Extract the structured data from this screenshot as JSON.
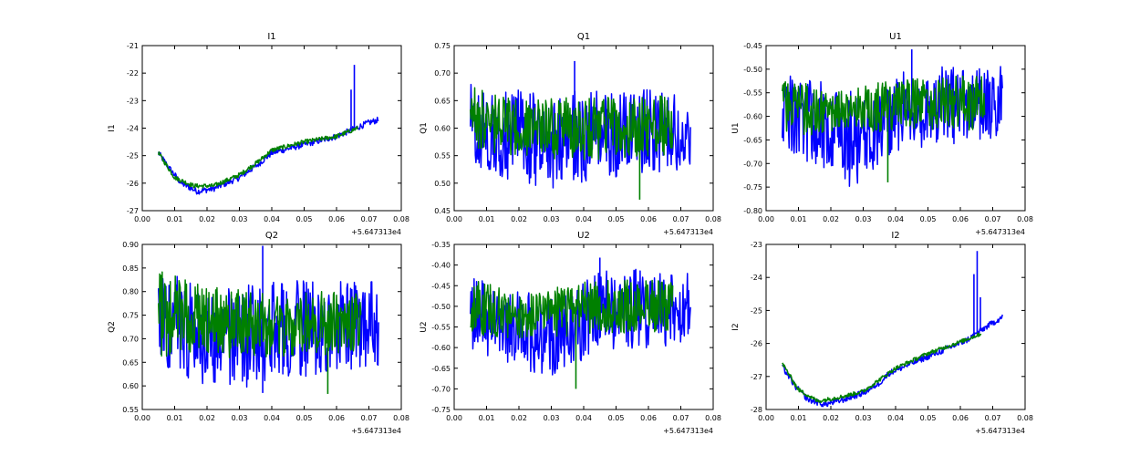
{
  "figure": {
    "background": "#ffffff",
    "series_colors": [
      "#0000ff",
      "#008000"
    ],
    "x_offset_label": "+5.647313e4"
  },
  "chart_data": [
    {
      "type": "line",
      "title": "I1",
      "xlabel": "",
      "ylabel": "I1",
      "xlim": [
        0.0,
        0.08
      ],
      "ylim": [
        -27,
        -21
      ],
      "x_ticks": [
        "0.00",
        "0.01",
        "0.02",
        "0.03",
        "0.04",
        "0.05",
        "0.06",
        "0.07",
        "0.08"
      ],
      "y_ticks": [
        "-27",
        "-26",
        "-25",
        "-24",
        "-23",
        "-22",
        "-21"
      ],
      "x_offset_label": "+5.647313e4",
      "grid": false,
      "series": [
        {
          "color": "#0000ff",
          "style": "smooth",
          "x_range": [
            0.005,
            0.073
          ],
          "knots": [
            [
              0.005,
              -24.9
            ],
            [
              0.008,
              -25.4
            ],
            [
              0.012,
              -26.0
            ],
            [
              0.017,
              -26.3
            ],
            [
              0.022,
              -26.2
            ],
            [
              0.03,
              -25.8
            ],
            [
              0.036,
              -25.3
            ],
            [
              0.04,
              -24.9
            ],
            [
              0.05,
              -24.6
            ],
            [
              0.06,
              -24.3
            ],
            [
              0.066,
              -24.0
            ],
            [
              0.07,
              -23.8
            ],
            [
              0.073,
              -23.7
            ]
          ],
          "noise": 0.22,
          "spikes": [
            [
              0.0645,
              -22.6
            ],
            [
              0.0655,
              -21.7
            ]
          ]
        },
        {
          "color": "#008000",
          "style": "smooth",
          "x_range": [
            0.005,
            0.0665
          ],
          "knots": [
            [
              0.005,
              -24.9
            ],
            [
              0.01,
              -25.8
            ],
            [
              0.016,
              -26.1
            ],
            [
              0.022,
              -26.1
            ],
            [
              0.03,
              -25.7
            ],
            [
              0.036,
              -25.2
            ],
            [
              0.04,
              -24.8
            ],
            [
              0.05,
              -24.5
            ],
            [
              0.06,
              -24.3
            ],
            [
              0.0665,
              -24.0
            ]
          ],
          "noise": 0.16,
          "spikes": []
        }
      ]
    },
    {
      "type": "line",
      "title": "Q1",
      "xlabel": "",
      "ylabel": "Q1",
      "xlim": [
        0.0,
        0.08
      ],
      "ylim": [
        0.45,
        0.75
      ],
      "x_ticks": [
        "0.00",
        "0.01",
        "0.02",
        "0.03",
        "0.04",
        "0.05",
        "0.06",
        "0.07",
        "0.08"
      ],
      "y_ticks": [
        "0.45",
        "0.50",
        "0.55",
        "0.60",
        "0.65",
        "0.70",
        "0.75"
      ],
      "x_offset_label": "+5.647313e4",
      "grid": false,
      "series": [
        {
          "color": "#0000ff",
          "style": "band",
          "x_range": [
            0.005,
            0.073
          ],
          "band": [
            [
              0.005,
              0.53,
              0.68
            ],
            [
              0.02,
              0.5,
              0.67
            ],
            [
              0.03,
              0.49,
              0.66
            ],
            [
              0.04,
              0.5,
              0.67
            ],
            [
              0.05,
              0.51,
              0.67
            ],
            [
              0.06,
              0.52,
              0.67
            ],
            [
              0.073,
              0.52,
              0.66
            ]
          ],
          "spikes": [
            [
              0.0372,
              0.722
            ],
            [
              0.0372,
              0.515
            ]
          ]
        },
        {
          "color": "#008000",
          "style": "band",
          "x_range": [
            0.005,
            0.0675
          ],
          "band": [
            [
              0.005,
              0.56,
              0.68
            ],
            [
              0.02,
              0.55,
              0.65
            ],
            [
              0.04,
              0.54,
              0.66
            ],
            [
              0.067,
              0.55,
              0.66
            ]
          ],
          "spikes": [
            [
              0.0573,
              0.47
            ]
          ]
        }
      ]
    },
    {
      "type": "line",
      "title": "U1",
      "xlabel": "",
      "ylabel": "U1",
      "xlim": [
        0.0,
        0.08
      ],
      "ylim": [
        -0.8,
        -0.45
      ],
      "x_ticks": [
        "0.00",
        "0.01",
        "0.02",
        "0.03",
        "0.04",
        "0.05",
        "0.06",
        "0.07",
        "0.08"
      ],
      "y_ticks": [
        "-0.80",
        "-0.75",
        "-0.70",
        "-0.65",
        "-0.60",
        "-0.55",
        "-0.50",
        "-0.45"
      ],
      "x_offset_label": "+5.647313e4",
      "grid": false,
      "series": [
        {
          "color": "#0000ff",
          "style": "band",
          "x_range": [
            0.005,
            0.073
          ],
          "band": [
            [
              0.005,
              -0.68,
              -0.51
            ],
            [
              0.015,
              -0.7,
              -0.52
            ],
            [
              0.025,
              -0.75,
              -0.54
            ],
            [
              0.03,
              -0.74,
              -0.56
            ],
            [
              0.035,
              -0.7,
              -0.53
            ],
            [
              0.045,
              -0.67,
              -0.49
            ],
            [
              0.06,
              -0.66,
              -0.48
            ],
            [
              0.073,
              -0.65,
              -0.49
            ]
          ],
          "spikes": [
            [
              0.045,
              -0.458
            ]
          ]
        },
        {
          "color": "#008000",
          "style": "band",
          "x_range": [
            0.005,
            0.0675
          ],
          "band": [
            [
              0.005,
              -0.64,
              -0.51
            ],
            [
              0.02,
              -0.64,
              -0.55
            ],
            [
              0.04,
              -0.63,
              -0.52
            ],
            [
              0.067,
              -0.63,
              -0.51
            ]
          ],
          "spikes": [
            [
              0.0376,
              -0.74
            ]
          ]
        }
      ]
    },
    {
      "type": "line",
      "title": "Q2",
      "xlabel": "",
      "ylabel": "Q2",
      "xlim": [
        0.0,
        0.08
      ],
      "ylim": [
        0.55,
        0.9
      ],
      "x_ticks": [
        "0.00",
        "0.01",
        "0.02",
        "0.03",
        "0.04",
        "0.05",
        "0.06",
        "0.07",
        "0.08"
      ],
      "y_ticks": [
        "0.55",
        "0.60",
        "0.65",
        "0.70",
        "0.75",
        "0.80",
        "0.85",
        "0.90"
      ],
      "x_offset_label": "+5.647313e4",
      "grid": false,
      "series": [
        {
          "color": "#0000ff",
          "style": "band",
          "x_range": [
            0.005,
            0.073
          ],
          "band": [
            [
              0.005,
              0.64,
              0.84
            ],
            [
              0.02,
              0.6,
              0.82
            ],
            [
              0.03,
              0.59,
              0.81
            ],
            [
              0.04,
              0.61,
              0.83
            ],
            [
              0.05,
              0.62,
              0.83
            ],
            [
              0.06,
              0.63,
              0.83
            ],
            [
              0.073,
              0.64,
              0.82
            ]
          ],
          "spikes": [
            [
              0.0372,
              0.897
            ],
            [
              0.0372,
              0.585
            ]
          ]
        },
        {
          "color": "#008000",
          "style": "band",
          "x_range": [
            0.005,
            0.0675
          ],
          "band": [
            [
              0.005,
              0.66,
              0.85
            ],
            [
              0.02,
              0.66,
              0.81
            ],
            [
              0.04,
              0.66,
              0.8
            ],
            [
              0.067,
              0.67,
              0.8
            ]
          ],
          "spikes": [
            [
              0.0573,
              0.583
            ]
          ]
        }
      ]
    },
    {
      "type": "line",
      "title": "U2",
      "xlabel": "",
      "ylabel": "U2",
      "xlim": [
        0.0,
        0.08
      ],
      "ylim": [
        -0.75,
        -0.35
      ],
      "x_ticks": [
        "0.00",
        "0.01",
        "0.02",
        "0.03",
        "0.04",
        "0.05",
        "0.06",
        "0.07",
        "0.08"
      ],
      "y_ticks": [
        "-0.75",
        "-0.70",
        "-0.65",
        "-0.60",
        "-0.55",
        "-0.50",
        "-0.45",
        "-0.40",
        "-0.35"
      ],
      "x_offset_label": "+5.647313e4",
      "grid": false,
      "series": [
        {
          "color": "#0000ff",
          "style": "band",
          "x_range": [
            0.005,
            0.073
          ],
          "band": [
            [
              0.005,
              -0.61,
              -0.42
            ],
            [
              0.015,
              -0.63,
              -0.45
            ],
            [
              0.025,
              -0.67,
              -0.47
            ],
            [
              0.03,
              -0.69,
              -0.48
            ],
            [
              0.036,
              -0.65,
              -0.46
            ],
            [
              0.045,
              -0.61,
              -0.41
            ],
            [
              0.06,
              -0.6,
              -0.41
            ],
            [
              0.073,
              -0.59,
              -0.42
            ]
          ],
          "spikes": [
            [
              0.045,
              -0.382
            ]
          ]
        },
        {
          "color": "#008000",
          "style": "band",
          "x_range": [
            0.005,
            0.0675
          ],
          "band": [
            [
              0.005,
              -0.57,
              -0.43
            ],
            [
              0.02,
              -0.58,
              -0.47
            ],
            [
              0.04,
              -0.57,
              -0.44
            ],
            [
              0.067,
              -0.56,
              -0.43
            ]
          ],
          "spikes": [
            [
              0.0376,
              -0.7
            ]
          ]
        }
      ]
    },
    {
      "type": "line",
      "title": "I2",
      "xlabel": "",
      "ylabel": "I2",
      "xlim": [
        0.0,
        0.08
      ],
      "ylim": [
        -28,
        -23
      ],
      "x_ticks": [
        "0.00",
        "0.01",
        "0.02",
        "0.03",
        "0.04",
        "0.05",
        "0.06",
        "0.07",
        "0.08"
      ],
      "y_ticks": [
        "-28",
        "-27",
        "-26",
        "-25",
        "-24",
        "-23"
      ],
      "x_offset_label": "+5.647313e4",
      "grid": false,
      "series": [
        {
          "color": "#0000ff",
          "style": "smooth",
          "x_range": [
            0.005,
            0.073
          ],
          "knots": [
            [
              0.005,
              -26.7
            ],
            [
              0.009,
              -27.3
            ],
            [
              0.013,
              -27.7
            ],
            [
              0.018,
              -27.85
            ],
            [
              0.024,
              -27.7
            ],
            [
              0.03,
              -27.5
            ],
            [
              0.035,
              -27.2
            ],
            [
              0.038,
              -26.9
            ],
            [
              0.045,
              -26.6
            ],
            [
              0.055,
              -26.2
            ],
            [
              0.062,
              -25.9
            ],
            [
              0.068,
              -25.5
            ],
            [
              0.073,
              -25.2
            ]
          ],
          "noise": 0.18,
          "spikes": [
            [
              0.0652,
              -23.2
            ],
            [
              0.0642,
              -23.9
            ],
            [
              0.0662,
              -24.6
            ]
          ]
        },
        {
          "color": "#008000",
          "style": "smooth",
          "x_range": [
            0.005,
            0.0665
          ],
          "knots": [
            [
              0.005,
              -26.6
            ],
            [
              0.01,
              -27.4
            ],
            [
              0.016,
              -27.75
            ],
            [
              0.024,
              -27.6
            ],
            [
              0.03,
              -27.45
            ],
            [
              0.035,
              -27.1
            ],
            [
              0.04,
              -26.75
            ],
            [
              0.05,
              -26.3
            ],
            [
              0.06,
              -25.95
            ],
            [
              0.0665,
              -25.7
            ]
          ],
          "noise": 0.12,
          "spikes": []
        }
      ]
    }
  ]
}
